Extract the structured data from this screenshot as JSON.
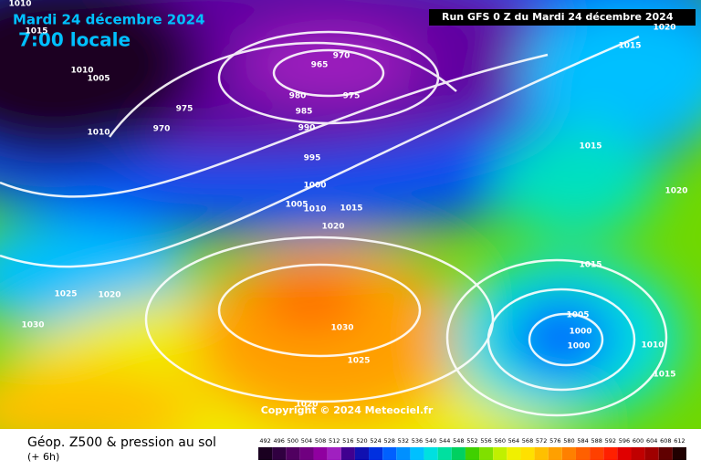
{
  "header": {
    "date": "Mardi 24 décembre 2024",
    "time": "7:00 locale",
    "run": "Run GFS 0 Z du Mardi 24 décembre 2024"
  },
  "isobar_labels": [
    "1010",
    "1015",
    "1010",
    "1005",
    "965",
    "970",
    "980",
    "975",
    "985",
    "975",
    "990",
    "970",
    "1010",
    "995",
    "1000",
    "1005",
    "1010",
    "1015",
    "1020",
    "1020",
    "1015",
    "1015",
    "1020",
    "1015",
    "1005",
    "1000",
    "1000",
    "1010",
    "1015",
    "1025",
    "1020",
    "1030",
    "1030",
    "1025",
    "1020"
  ],
  "copyright": "Copyright © 2024 Meteociel.fr",
  "footer": {
    "title": "Géop. Z500 & pression au sol",
    "lead": "(+ 6h)"
  },
  "scale": {
    "labels": [
      "492",
      "496",
      "500",
      "504",
      "508",
      "512",
      "516",
      "520",
      "524",
      "528",
      "532",
      "536",
      "540",
      "544",
      "548",
      "552",
      "556",
      "560",
      "564",
      "568",
      "572",
      "576",
      "580",
      "584",
      "588",
      "592",
      "596",
      "600",
      "604",
      "608",
      "612"
    ],
    "colors": [
      "#1a0020",
      "#300040",
      "#500060",
      "#700080",
      "#9000a0",
      "#a020c0",
      "#400090",
      "#1010b0",
      "#0030e0",
      "#0060ff",
      "#0090ff",
      "#00c0ff",
      "#00e0e0",
      "#00e0a0",
      "#00d060",
      "#40d000",
      "#80e000",
      "#c0f000",
      "#f0f000",
      "#ffe000",
      "#ffc000",
      "#ffa000",
      "#ff8000",
      "#ff6000",
      "#ff4000",
      "#ff2000",
      "#e00000",
      "#c00000",
      "#a00000",
      "#600000",
      "#200000"
    ]
  }
}
